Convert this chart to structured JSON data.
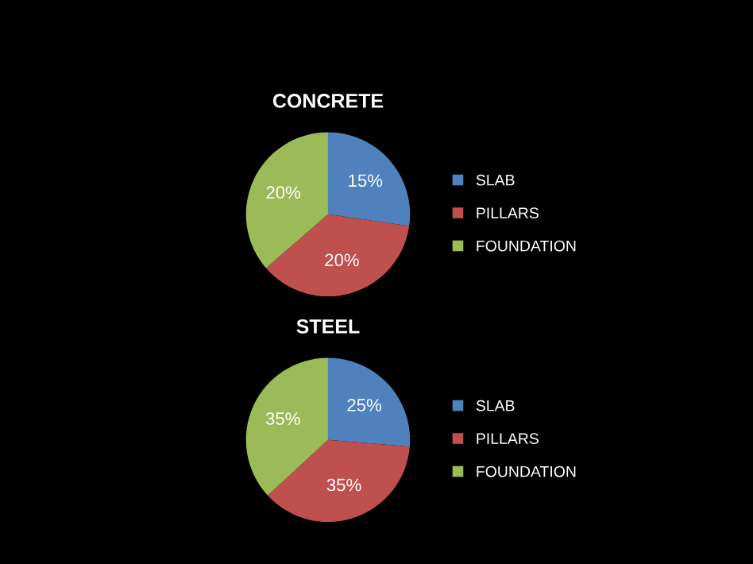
{
  "chart_data": [
    {
      "type": "pie",
      "title": "CONCRETE",
      "categories": [
        "SLAB",
        "PILLARS",
        "FOUNDATION"
      ],
      "values": [
        15,
        20,
        20
      ],
      "colors": [
        "#4f81bd",
        "#c0504d",
        "#9bbb59"
      ],
      "value_labels": [
        "15%",
        "20%",
        "20%"
      ],
      "legend": "right"
    },
    {
      "type": "pie",
      "title": "STEEL",
      "categories": [
        "SLAB",
        "PILLARS",
        "FOUNDATION"
      ],
      "values": [
        25,
        35,
        35
      ],
      "colors": [
        "#4f81bd",
        "#c0504d",
        "#9bbb59"
      ],
      "value_labels": [
        "25%",
        "35%",
        "35%"
      ],
      "legend": "right"
    }
  ]
}
